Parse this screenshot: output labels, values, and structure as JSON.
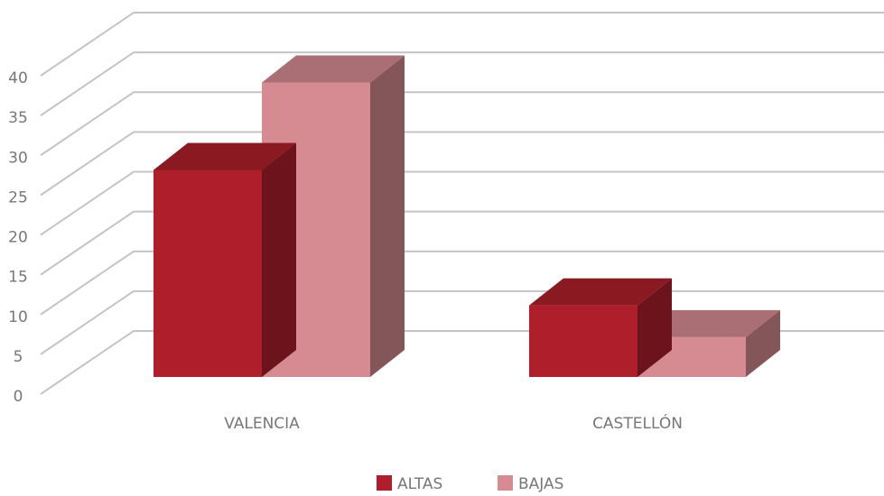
{
  "chart_data": {
    "type": "bar3d",
    "categories": [
      "VALENCIA",
      "CASTELLÓN"
    ],
    "series": [
      {
        "name": "ALTAS",
        "color": "#ae1f2b",
        "values": [
          26,
          9
        ]
      },
      {
        "name": "BAJAS",
        "color": "#d58b91",
        "values": [
          37,
          5
        ]
      }
    ],
    "ylim": [
      0,
      40
    ],
    "yticks": [
      0,
      5,
      10,
      15,
      20,
      25,
      30,
      35,
      40
    ],
    "grid": true
  }
}
